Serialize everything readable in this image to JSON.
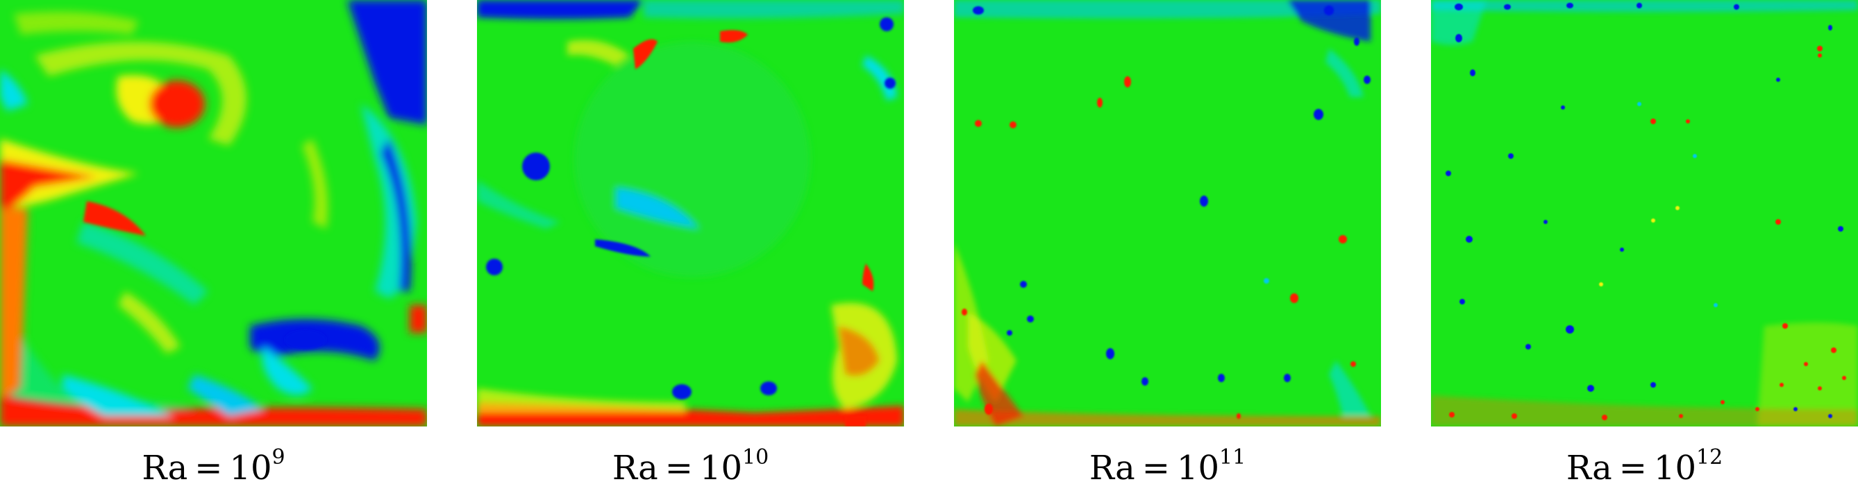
{
  "colors": {
    "cold": "#0015e6",
    "cool": "#00e0e8",
    "neutral": "#12e612",
    "warm": "#f2f20a",
    "hot": "#ff1a00"
  },
  "panels": [
    {
      "var": "Ra",
      "eq": "=",
      "base": "10",
      "exp": "9"
    },
    {
      "var": "Ra",
      "eq": "=",
      "base": "10",
      "exp": "10"
    },
    {
      "var": "Ra",
      "eq": "=",
      "base": "10",
      "exp": "11"
    },
    {
      "var": "Ra",
      "eq": "=",
      "base": "10",
      "exp": "12"
    }
  ]
}
